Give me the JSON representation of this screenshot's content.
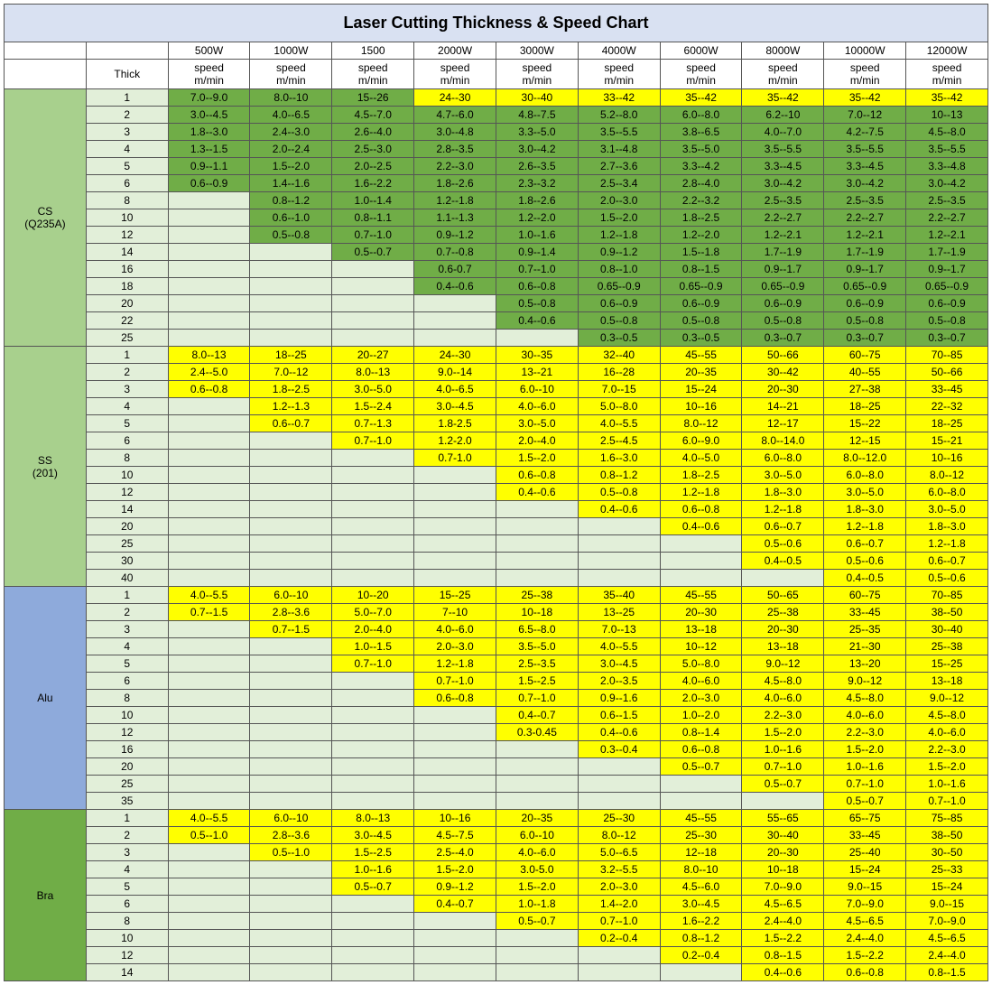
{
  "title": "Laser Cutting Thickness & Speed Chart",
  "thick_label": "Thick",
  "power_headers": [
    "500W",
    "1000W",
    "1500",
    "2000W",
    "3000W",
    "4000W",
    "6000W",
    "8000W",
    "10000W",
    "12000W"
  ],
  "unit_header": "speed\nm/min",
  "colors": {
    "title_bg": "#d9e1f2",
    "header_bg": "#ffffff",
    "green": "#70ad47",
    "yellow": "#ffff00",
    "cs_light": "#e2efd9",
    "ss_light": "#e2efd9",
    "alu_light": "#e2efd9",
    "bra_light": "#e2efd9",
    "cs_mat_bg": "#a8d08d",
    "ss_mat_bg": "#a8d08d",
    "alu_mat_bg": "#8eaadb",
    "bra_mat_bg": "#70ad47"
  },
  "materials": [
    {
      "name": "CS\n(Q235A)",
      "mat_bg": "#a8d08d",
      "light_bg": "#e2efd9",
      "fill_color": "#70ad47",
      "rows": [
        {
          "thick": 1,
          "vals": [
            "7.0--9.0",
            "8.0--10",
            "15--26",
            "24--30",
            "30--40",
            "33--42",
            "35--42",
            "35--42",
            "35--42",
            "35--42"
          ],
          "ycount": 3
        },
        {
          "thick": 2,
          "vals": [
            "3.0--4.5",
            "4.0--6.5",
            "4.5--7.0",
            "4.7--6.0",
            "4.8--7.5",
            "5.2--8.0",
            "6.0--8.0",
            "6.2--10",
            "7.0--12",
            "10--13"
          ],
          "ycount": 0
        },
        {
          "thick": 3,
          "vals": [
            "1.8--3.0",
            "2.4--3.0",
            "2.6--4.0",
            "3.0--4.8",
            "3.3--5.0",
            "3.5--5.5",
            "3.8--6.5",
            "4.0--7.0",
            "4.2--7.5",
            "4.5--8.0"
          ],
          "ycount": 0
        },
        {
          "thick": 4,
          "vals": [
            "1.3--1.5",
            "2.0--2.4",
            "2.5--3.0",
            "2.8--3.5",
            "3.0--4.2",
            "3.1--4.8",
            "3.5--5.0",
            "3.5--5.5",
            "3.5--5.5",
            "3.5--5.5"
          ],
          "ycount": 0
        },
        {
          "thick": 5,
          "vals": [
            "0.9--1.1",
            "1.5--2.0",
            "2.0--2.5",
            "2.2--3.0",
            "2.6--3.5",
            "2.7--3.6",
            "3.3--4.2",
            "3.3--4.5",
            "3.3--4.5",
            "3.3--4.8"
          ],
          "ycount": 0
        },
        {
          "thick": 6,
          "vals": [
            "0.6--0.9",
            "1.4--1.6",
            "1.6--2.2",
            "1.8--2.6",
            "2.3--3.2",
            "2.5--3.4",
            "2.8--4.0",
            "3.0--4.2",
            "3.0--4.2",
            "3.0--4.2"
          ],
          "ycount": 0
        },
        {
          "thick": 8,
          "vals": [
            "",
            "0.8--1.2",
            "1.0--1.4",
            "1.2--1.8",
            "1.8--2.6",
            "2.0--3.0",
            "2.2--3.2",
            "2.5--3.5",
            "2.5--3.5",
            "2.5--3.5"
          ],
          "ycount": 0
        },
        {
          "thick": 10,
          "vals": [
            "",
            "0.6--1.0",
            "0.8--1.1",
            "1.1--1.3",
            "1.2--2.0",
            "1.5--2.0",
            "1.8--2.5",
            "2.2--2.7",
            "2.2--2.7",
            "2.2--2.7"
          ],
          "ycount": 0
        },
        {
          "thick": 12,
          "vals": [
            "",
            "0.5--0.8",
            "0.7--1.0",
            "0.9--1.2",
            "1.0--1.6",
            "1.2--1.8",
            "1.2--2.0",
            "1.2--2.1",
            "1.2--2.1",
            "1.2--2.1"
          ],
          "ycount": 0
        },
        {
          "thick": 14,
          "vals": [
            "",
            "",
            "0.5--0.7",
            "0.7--0.8",
            "0.9--1.4",
            "0.9--1.2",
            "1.5--1.8",
            "1.7--1.9",
            "1.7--1.9",
            "1.7--1.9"
          ],
          "ycount": 0
        },
        {
          "thick": 16,
          "vals": [
            "",
            "",
            "",
            "0.6-0.7",
            "0.7--1.0",
            "0.8--1.0",
            "0.8--1.5",
            "0.9--1.7",
            "0.9--1.7",
            "0.9--1.7"
          ],
          "ycount": 0
        },
        {
          "thick": 18,
          "vals": [
            "",
            "",
            "",
            "0.4--0.6",
            "0.6--0.8",
            "0.65--0.9",
            "0.65--0.9",
            "0.65--0.9",
            "0.65--0.9",
            "0.65--0.9"
          ],
          "ycount": 0
        },
        {
          "thick": 20,
          "vals": [
            "",
            "",
            "",
            "",
            "0.5--0.8",
            "0.6--0.9",
            "0.6--0.9",
            "0.6--0.9",
            "0.6--0.9",
            "0.6--0.9"
          ],
          "ycount": 0
        },
        {
          "thick": 22,
          "vals": [
            "",
            "",
            "",
            "",
            "0.4--0.6",
            "0.5--0.8",
            "0.5--0.8",
            "0.5--0.8",
            "0.5--0.8",
            "0.5--0.8"
          ],
          "ycount": 0
        },
        {
          "thick": 25,
          "vals": [
            "",
            "",
            "",
            "",
            "",
            "0.3--0.5",
            "0.3--0.5",
            "0.3--0.7",
            "0.3--0.7",
            "0.3--0.7"
          ],
          "ycount": 0
        }
      ]
    },
    {
      "name": "SS\n(201)",
      "mat_bg": "#a8d08d",
      "light_bg": "#e2efd9",
      "fill_color": "#ffff00",
      "rows": [
        {
          "thick": 1,
          "vals": [
            "8.0--13",
            "18--25",
            "20--27",
            "24--30",
            "30--35",
            "32--40",
            "45--55",
            "50--66",
            "60--75",
            "70--85"
          ],
          "ycount": 10
        },
        {
          "thick": 2,
          "vals": [
            "2.4--5.0",
            "7.0--12",
            "8.0--13",
            "9.0--14",
            "13--21",
            "16--28",
            "20--35",
            "30--42",
            "40--55",
            "50--66"
          ],
          "ycount": 10
        },
        {
          "thick": 3,
          "vals": [
            "0.6--0.8",
            "1.8--2.5",
            "3.0--5.0",
            "4.0--6.5",
            "6.0--10",
            "7.0--15",
            "15--24",
            "20--30",
            "27--38",
            "33--45"
          ],
          "ycount": 10
        },
        {
          "thick": 4,
          "vals": [
            "",
            "1.2--1.3",
            "1.5--2.4",
            "3.0--4.5",
            "4.0--6.0",
            "5.0--8.0",
            "10--16",
            "14--21",
            "18--25",
            "22--32"
          ],
          "ycount": 10
        },
        {
          "thick": 5,
          "vals": [
            "",
            "0.6--0.7",
            "0.7--1.3",
            "1.8-2.5",
            "3.0--5.0",
            "4.0--5.5",
            "8.0--12",
            "12--17",
            "15--22",
            "18--25"
          ],
          "ycount": 10
        },
        {
          "thick": 6,
          "vals": [
            "",
            "",
            "0.7--1.0",
            "1.2-2.0",
            "2.0--4.0",
            "2.5--4.5",
            "6.0--9.0",
            "8.0--14.0",
            "12--15",
            "15--21"
          ],
          "ycount": 10
        },
        {
          "thick": 8,
          "vals": [
            "",
            "",
            "",
            "0.7-1.0",
            "1.5--2.0",
            "1.6--3.0",
            "4.0--5.0",
            "6.0--8.0",
            "8.0--12.0",
            "10--16"
          ],
          "ycount": 10
        },
        {
          "thick": 10,
          "vals": [
            "",
            "",
            "",
            "",
            "0.6--0.8",
            "0.8--1.2",
            "1.8--2.5",
            "3.0--5.0",
            "6.0--8.0",
            "8.0--12"
          ],
          "ycount": 10
        },
        {
          "thick": 12,
          "vals": [
            "",
            "",
            "",
            "",
            "0.4--0.6",
            "0.5--0.8",
            "1.2--1.8",
            "1.8--3.0",
            "3.0--5.0",
            "6.0--8.0"
          ],
          "ycount": 10
        },
        {
          "thick": 14,
          "vals": [
            "",
            "",
            "",
            "",
            "",
            "0.4--0.6",
            "0.6--0.8",
            "1.2--1.8",
            "1.8--3.0",
            "3.0--5.0"
          ],
          "ycount": 10
        },
        {
          "thick": 20,
          "vals": [
            "",
            "",
            "",
            "",
            "",
            "",
            "0.4--0.6",
            "0.6--0.7",
            "1.2--1.8",
            "1.8--3.0"
          ],
          "ycount": 10
        },
        {
          "thick": 25,
          "vals": [
            "",
            "",
            "",
            "",
            "",
            "",
            "",
            "0.5--0.6",
            "0.6--0.7",
            "1.2--1.8"
          ],
          "ycount": 10
        },
        {
          "thick": 30,
          "vals": [
            "",
            "",
            "",
            "",
            "",
            "",
            "",
            "0.4--0.5",
            "0.5--0.6",
            "0.6--0.7"
          ],
          "ycount": 10
        },
        {
          "thick": 40,
          "vals": [
            "",
            "",
            "",
            "",
            "",
            "",
            "",
            "",
            "0.4--0.5",
            "0.5--0.6"
          ],
          "ycount": 10
        }
      ]
    },
    {
      "name": "Alu",
      "mat_bg": "#8eaadb",
      "light_bg": "#e2efd9",
      "fill_color": "#ffff00",
      "rows": [
        {
          "thick": 1,
          "vals": [
            "4.0--5.5",
            "6.0--10",
            "10--20",
            "15--25",
            "25--38",
            "35--40",
            "45--55",
            "50--65",
            "60--75",
            "70--85"
          ],
          "ycount": 10
        },
        {
          "thick": 2,
          "vals": [
            "0.7--1.5",
            "2.8--3.6",
            "5.0--7.0",
            "7--10",
            "10--18",
            "13--25",
            "20--30",
            "25--38",
            "33--45",
            "38--50"
          ],
          "ycount": 10
        },
        {
          "thick": 3,
          "vals": [
            "",
            "0.7--1.5",
            "2.0--4.0",
            "4.0--6.0",
            "6.5--8.0",
            "7.0--13",
            "13--18",
            "20--30",
            "25--35",
            "30--40"
          ],
          "ycount": 10
        },
        {
          "thick": 4,
          "vals": [
            "",
            "",
            "1.0--1.5",
            "2.0--3.0",
            "3.5--5.0",
            "4.0--5.5",
            "10--12",
            "13--18",
            "21--30",
            "25--38"
          ],
          "ycount": 10
        },
        {
          "thick": 5,
          "vals": [
            "",
            "",
            "0.7--1.0",
            "1.2--1.8",
            "2.5--3.5",
            "3.0--4.5",
            "5.0--8.0",
            "9.0--12",
            "13--20",
            "15--25"
          ],
          "ycount": 10
        },
        {
          "thick": 6,
          "vals": [
            "",
            "",
            "",
            "0.7--1.0",
            "1.5--2.5",
            "2.0--3.5",
            "4.0--6.0",
            "4.5--8.0",
            "9.0--12",
            "13--18"
          ],
          "ycount": 10
        },
        {
          "thick": 8,
          "vals": [
            "",
            "",
            "",
            "0.6--0.8",
            "0.7--1.0",
            "0.9--1.6",
            "2.0--3.0",
            "4.0--6.0",
            "4.5--8.0",
            "9.0--12"
          ],
          "ycount": 10
        },
        {
          "thick": 10,
          "vals": [
            "",
            "",
            "",
            "",
            "0.4--0.7",
            "0.6--1.5",
            "1.0--2.0",
            "2.2--3.0",
            "4.0--6.0",
            "4.5--8.0"
          ],
          "ycount": 10
        },
        {
          "thick": 12,
          "vals": [
            "",
            "",
            "",
            "",
            "0.3-0.45",
            "0.4--0.6",
            "0.8--1.4",
            "1.5--2.0",
            "2.2--3.0",
            "4.0--6.0"
          ],
          "ycount": 10
        },
        {
          "thick": 16,
          "vals": [
            "",
            "",
            "",
            "",
            "",
            "0.3--0.4",
            "0.6--0.8",
            "1.0--1.6",
            "1.5--2.0",
            "2.2--3.0"
          ],
          "ycount": 10
        },
        {
          "thick": 20,
          "vals": [
            "",
            "",
            "",
            "",
            "",
            "",
            "0.5--0.7",
            "0.7--1.0",
            "1.0--1.6",
            "1.5--2.0"
          ],
          "ycount": 10
        },
        {
          "thick": 25,
          "vals": [
            "",
            "",
            "",
            "",
            "",
            "",
            "",
            "0.5--0.7",
            "0.7--1.0",
            "1.0--1.6"
          ],
          "ycount": 10
        },
        {
          "thick": 35,
          "vals": [
            "",
            "",
            "",
            "",
            "",
            "",
            "",
            "",
            "0.5--0.7",
            "0.7--1.0"
          ],
          "ycount": 10
        }
      ]
    },
    {
      "name": "Bra",
      "mat_bg": "#70ad47",
      "light_bg": "#e2efd9",
      "fill_color": "#ffff00",
      "rows": [
        {
          "thick": 1,
          "vals": [
            "4.0--5.5",
            "6.0--10",
            "8.0--13",
            "10--16",
            "20--35",
            "25--30",
            "45--55",
            "55--65",
            "65--75",
            "75--85"
          ],
          "ycount": 10
        },
        {
          "thick": 2,
          "vals": [
            "0.5--1.0",
            "2.8--3.6",
            "3.0--4.5",
            "4.5--7.5",
            "6.0--10",
            "8.0--12",
            "25--30",
            "30--40",
            "33--45",
            "38--50"
          ],
          "ycount": 10
        },
        {
          "thick": 3,
          "vals": [
            "",
            "0.5--1.0",
            "1.5--2.5",
            "2.5--4.0",
            "4.0--6.0",
            "5.0--6.5",
            "12--18",
            "20--30",
            "25--40",
            "30--50"
          ],
          "ycount": 10
        },
        {
          "thick": 4,
          "vals": [
            "",
            "",
            "1.0--1.6",
            "1.5--2.0",
            "3.0-5.0",
            "3.2--5.5",
            "8.0--10",
            "10--18",
            "15--24",
            "25--33"
          ],
          "ycount": 10
        },
        {
          "thick": 5,
          "vals": [
            "",
            "",
            "0.5--0.7",
            "0.9--1.2",
            "1.5--2.0",
            "2.0--3.0",
            "4.5--6.0",
            "7.0--9.0",
            "9.0--15",
            "15--24"
          ],
          "ycount": 10
        },
        {
          "thick": 6,
          "vals": [
            "",
            "",
            "",
            "0.4--0.7",
            "1.0--1.8",
            "1.4--2.0",
            "3.0--4.5",
            "4.5--6.5",
            "7.0--9.0",
            "9.0--15"
          ],
          "ycount": 10
        },
        {
          "thick": 8,
          "vals": [
            "",
            "",
            "",
            "",
            "0.5--0.7",
            "0.7--1.0",
            "1.6--2.2",
            "2.4--4.0",
            "4.5--6.5",
            "7.0--9.0"
          ],
          "ycount": 10
        },
        {
          "thick": 10,
          "vals": [
            "",
            "",
            "",
            "",
            "",
            "0.2--0.4",
            "0.8--1.2",
            "1.5--2.2",
            "2.4--4.0",
            "4.5--6.5"
          ],
          "ycount": 10
        },
        {
          "thick": 12,
          "vals": [
            "",
            "",
            "",
            "",
            "",
            "",
            "0.2--0.4",
            "0.8--1.5",
            "1.5--2.2",
            "2.4--4.0"
          ],
          "ycount": 10
        },
        {
          "thick": 14,
          "vals": [
            "",
            "",
            "",
            "",
            "",
            "",
            "",
            "0.4--0.6",
            "0.6--0.8",
            "0.8--1.5"
          ],
          "ycount": 10
        }
      ]
    }
  ]
}
